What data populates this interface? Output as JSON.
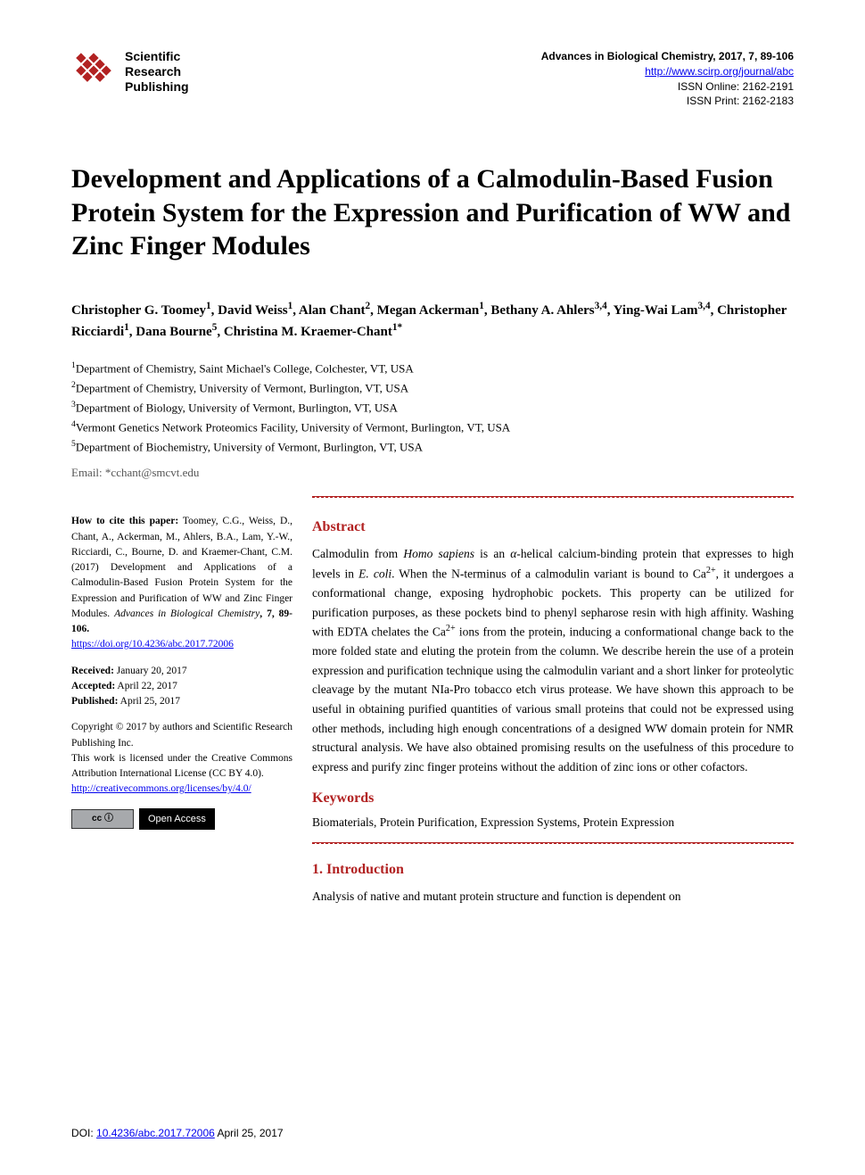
{
  "publisher": {
    "name_line1": "Scientific",
    "name_line2": "Research",
    "name_line3": "Publishing",
    "logo_color": "#b22222"
  },
  "journal": {
    "citation": "Advances in Biological Chemistry, 2017, 7, 89-106",
    "url": "http://www.scirp.org/journal/abc",
    "issn_online": "ISSN Online: 2162-2191",
    "issn_print": "ISSN Print: 2162-2183"
  },
  "title": "Development and Applications of a Calmodulin-Based Fusion Protein System for the Expression and Purification of WW and Zinc Finger Modules",
  "authors_html": "Christopher G. Toomey<sup>1</sup>, David Weiss<sup>1</sup>, Alan Chant<sup>2</sup>, Megan Ackerman<sup>1</sup>, Bethany A. Ahlers<sup>3,4</sup>, Ying-Wai Lam<sup>3,4</sup>, Christopher Ricciardi<sup>1</sup>, Dana Bourne<sup>5</sup>, Christina M. Kraemer-Chant<sup>1*</sup>",
  "affiliations": [
    "<sup>1</sup>Department of Chemistry, Saint Michael's College, Colchester, VT, USA",
    "<sup>2</sup>Department of Chemistry, University of Vermont, Burlington, VT, USA",
    "<sup>3</sup>Department of Biology, University of Vermont, Burlington, VT, USA",
    "<sup>4</sup>Vermont Genetics Network Proteomics Facility, University of Vermont, Burlington, VT, USA",
    "<sup>5</sup>Department of Biochemistry, University of Vermont, Burlington, VT, USA"
  ],
  "email_label": "Email: *",
  "email": "cchant@smcvt.edu",
  "cite": {
    "label": "How to cite this paper:",
    "text": " Toomey, C.G., Weiss, D., Chant, A., Ackerman, M., Ahlers, B.A., Lam, Y.-W., Ricciardi, C., Bourne, D. and Kraemer-Chant, C.M. (2017) Development and Applications of a Calmodulin-Based Fusion Protein System for the Expression and Purification of WW and Zinc Finger Modules. ",
    "journal_italic": "Advances in Biological Chemistry",
    "vol": ", 7, 89-106.",
    "doi_url": "https://doi.org/10.4236/abc.2017.72006"
  },
  "dates": {
    "received_label": "Received:",
    "received": " January 20, 2017",
    "accepted_label": "Accepted:",
    "accepted": " April 22, 2017",
    "published_label": "Published:",
    "published": " April 25, 2017"
  },
  "copyright": {
    "line1": "Copyright © 2017 by authors and Scientific Research Publishing Inc.",
    "line2": "This work is licensed under the Creative Commons Attribution International License (CC BY 4.0).",
    "url": "http://creativecommons.org/licenses/by/4.0/",
    "cc_text": "cc  ⓘ",
    "oa_text": "Open Access"
  },
  "abstract": {
    "heading": "Abstract",
    "text": "Calmodulin from <i>Homo sapiens</i> is an <i>α</i>-helical calcium-binding protein that expresses to high levels in <i>E. coli</i>. When the N-terminus of a calmodulin variant is bound to Ca<sup>2+</sup>, it undergoes a conformational change, exposing hydrophobic pockets. This property can be utilized for purification purposes, as these pockets bind to phenyl sepharose resin with high affinity. Washing with EDTA chelates the Ca<sup>2+</sup> ions from the protein, inducing a conformational change back to the more folded state and eluting the protein from the column. We describe herein the use of a protein expression and purification technique using the calmodulin variant and a short linker for proteolytic cleavage by the mutant NIa-Pro tobacco etch virus protease. We have shown this approach to be useful in obtaining purified quantities of various small proteins that could not be expressed using other methods, including high enough concentrations of a designed WW domain protein for NMR structural analysis. We have also obtained promising results on the usefulness of this procedure to express and purify zinc finger proteins without the addition of zinc ions or other cofactors."
  },
  "keywords": {
    "heading": "Keywords",
    "text": "Biomaterials, Protein Purification, Expression Systems, Protein Expression"
  },
  "intro": {
    "heading": "1. Introduction",
    "text": "Analysis of native and mutant protein structure and function is dependent on"
  },
  "footer": {
    "doi_label": "DOI: ",
    "doi_url": "10.4236/abc.2017.72006",
    "date": "   April 25, 2017"
  },
  "colors": {
    "accent": "#b22222",
    "link": "#0000ee",
    "text": "#000000"
  }
}
